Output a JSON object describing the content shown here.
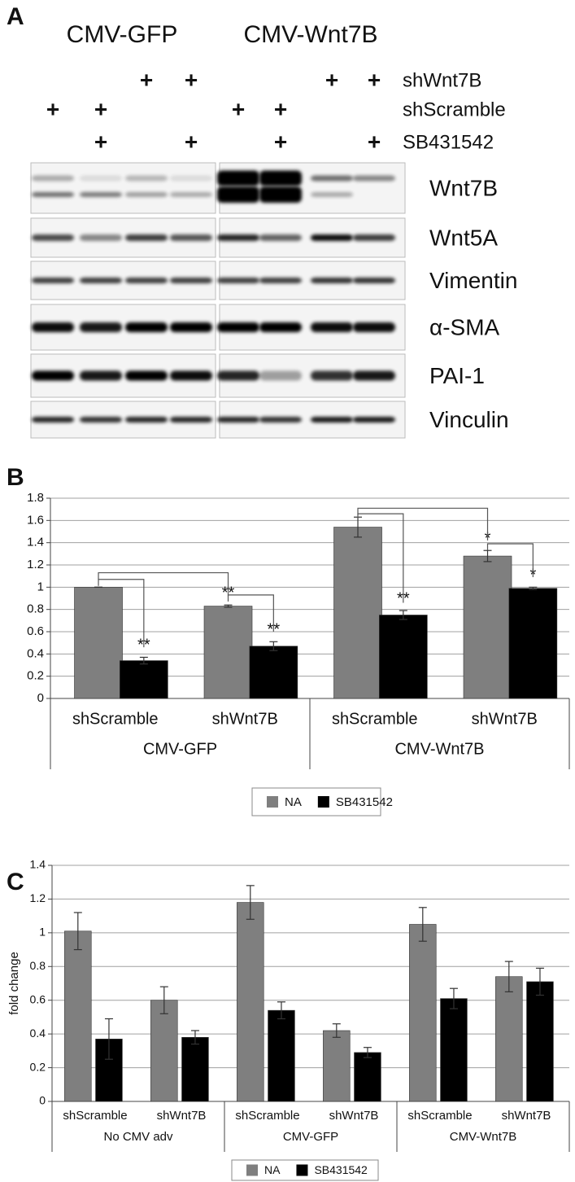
{
  "panel_a": {
    "panel": "A",
    "groups": [
      "CMV-GFP",
      "CMV-Wnt7B"
    ],
    "treatments": [
      {
        "label": "shWnt7B",
        "lanes": [
          null,
          null,
          "+",
          "+",
          null,
          null,
          "+",
          "+"
        ]
      },
      {
        "label": "shScramble",
        "lanes": [
          "+",
          "+",
          null,
          null,
          "+",
          "+",
          null,
          null
        ]
      },
      {
        "label": "SB431542",
        "lanes": [
          null,
          "+",
          null,
          "+",
          null,
          "+",
          null,
          "+"
        ]
      }
    ],
    "blots": [
      "Wnt7B",
      "Wnt5A",
      "Vimentin",
      "α-SMA",
      "PAI-1",
      "Vinculin"
    ]
  },
  "chart_data": [
    {
      "type": "bar",
      "panel": "B",
      "groups": [
        {
          "name": "CMV-GFP",
          "categories": [
            "shScramble",
            "shWnt7B"
          ]
        },
        {
          "name": "CMV-Wnt7B",
          "categories": [
            "shScramble",
            "shWnt7B"
          ]
        }
      ],
      "series": [
        {
          "name": "NA",
          "color": "#7f7f7f",
          "values": [
            1,
            0.83,
            1.54,
            1.28
          ],
          "errors": [
            0,
            0.01,
            0.09,
            0.05
          ],
          "annotations": [
            null,
            "**",
            null,
            "*"
          ]
        },
        {
          "name": "SB431542",
          "color": "#000000",
          "values": [
            0.34,
            0.47,
            0.75,
            0.99
          ],
          "errors": [
            0.03,
            0.04,
            0.04,
            0.01
          ],
          "annotations": [
            "**",
            "**",
            "**",
            "*"
          ]
        }
      ],
      "ylim": [
        0,
        1.8
      ],
      "yticks": [
        0,
        0.2,
        0.4,
        0.6,
        0.8,
        1,
        1.2,
        1.4,
        1.6,
        1.8
      ],
      "grid": true
    },
    {
      "type": "bar",
      "panel": "C",
      "y_label": "fold change",
      "groups": [
        {
          "name": "No CMV adv",
          "categories": [
            "shScramble",
            "shWnt7B"
          ]
        },
        {
          "name": "CMV-GFP",
          "categories": [
            "shScramble",
            "shWnt7B"
          ]
        },
        {
          "name": "CMV-Wnt7B",
          "categories": [
            "shScramble",
            "shWnt7B"
          ]
        }
      ],
      "series": [
        {
          "name": "NA",
          "color": "#7f7f7f",
          "values": [
            1.01,
            0.6,
            1.18,
            0.42,
            1.05,
            0.74
          ],
          "errors": [
            0.11,
            0.08,
            0.1,
            0.04,
            0.1,
            0.09
          ]
        },
        {
          "name": "SB431542",
          "color": "#000000",
          "values": [
            0.37,
            0.38,
            0.54,
            0.29,
            0.61,
            0.71
          ],
          "errors": [
            0.12,
            0.04,
            0.05,
            0.03,
            0.06,
            0.08
          ]
        }
      ],
      "ylim": [
        0,
        1.4
      ],
      "yticks": [
        0,
        0.2,
        0.4,
        0.6,
        0.8,
        1,
        1.2,
        1.4
      ],
      "grid": true
    }
  ]
}
